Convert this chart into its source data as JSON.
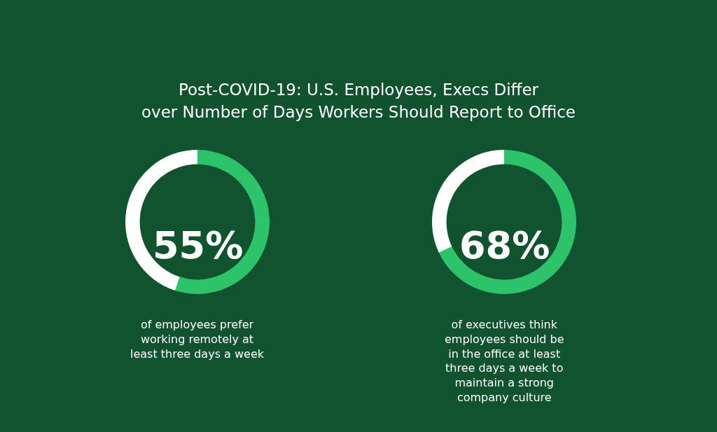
{
  "chart_data": [
    {
      "type": "donut",
      "title": "Post-COVID-19: U.S. Employees, Execs Differ\nover Number of Days Workers Should Report to Office",
      "categories": [
        null,
        null
      ],
      "values": [
        55,
        45
      ],
      "colors": [
        "#2dc36a",
        "#ffffff"
      ],
      "annotations": [
        "55%",
        "of employees prefer\nworking remotely at\nleast three days a week"
      ]
    },
    {
      "type": "donut",
      "categories": [
        null,
        null
      ],
      "values": [
        68,
        32
      ],
      "colors": [
        "#2dc36a",
        "#ffffff"
      ],
      "annotations": [
        "68%",
        "of executives think\nemployees should be\nin the office at least\nthree days a week to\nmaintain a strong\ncompany culture"
      ]
    }
  ]
}
